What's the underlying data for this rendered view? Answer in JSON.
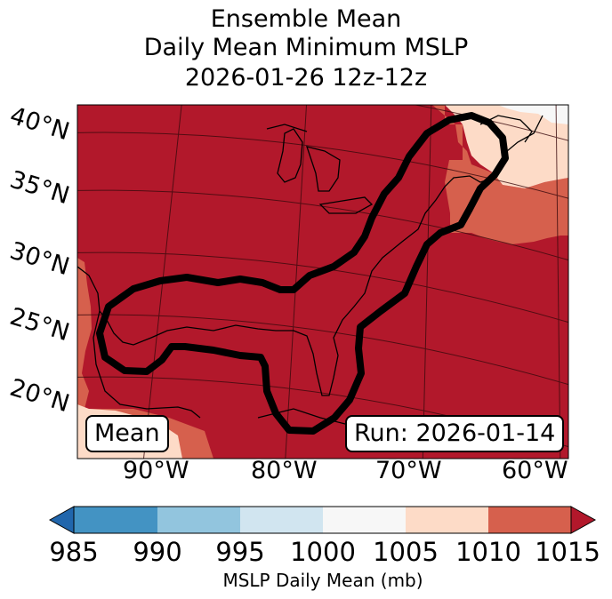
{
  "title": {
    "line1": "Ensemble Mean",
    "line2": "Daily Mean Minimum MSLP",
    "line3": "2026-01-26 12z-12z"
  },
  "map": {
    "latitude_labels": [
      "40°N",
      "35°N",
      "30°N",
      "25°N",
      "20°N"
    ],
    "longitude_labels": [
      "90°W",
      "80°W",
      "70°W",
      "60°W"
    ],
    "mean_label": "Mean",
    "run_label": "Run: 2026-01-14",
    "colors": {
      "985": "#2166ac",
      "985-990": "#4393c3",
      "990-995": "#92c5de",
      "995-1000": "#d1e5f0",
      "1000-1005": "#f7f7f7",
      "1005-1010": "#fddbc7",
      "1010-1015": "#d6604d",
      "1015+": "#b2182b",
      "outline": "#000000"
    }
  },
  "colorbar": {
    "ticks": [
      "985",
      "990",
      "995",
      "1000",
      "1005",
      "1010",
      "1015"
    ],
    "label": "MSLP Daily Mean (mb)",
    "colors": [
      "#2166ac",
      "#4393c3",
      "#92c5de",
      "#d1e5f0",
      "#f7f7f7",
      "#fddbc7",
      "#d6604d",
      "#b2182b"
    ]
  }
}
